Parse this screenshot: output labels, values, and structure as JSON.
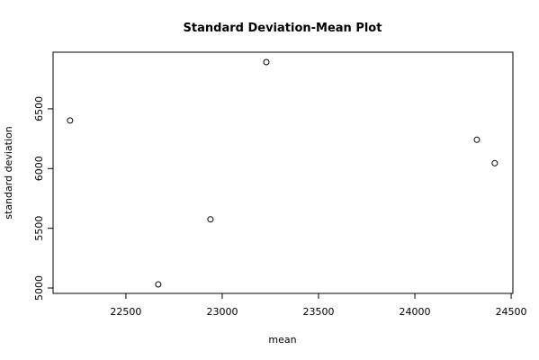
{
  "chart_data": {
    "type": "scatter",
    "title": "Standard Deviation-Mean Plot",
    "x_label": "mean",
    "y_label": "standard deviation",
    "x": [
      22210,
      22668,
      22939,
      23229,
      24322,
      24415
    ],
    "values": [
      6402,
      5030,
      5575,
      6891,
      6241,
      6045
    ],
    "color": "#000000",
    "xlim": [
      22122,
      24509
    ],
    "xticks": [
      22500,
      23000,
      23500,
      24000,
      24500
    ],
    "ylim": [
      4955,
      6974
    ],
    "yticks": [
      5000,
      5500,
      6000,
      6500
    ]
  }
}
